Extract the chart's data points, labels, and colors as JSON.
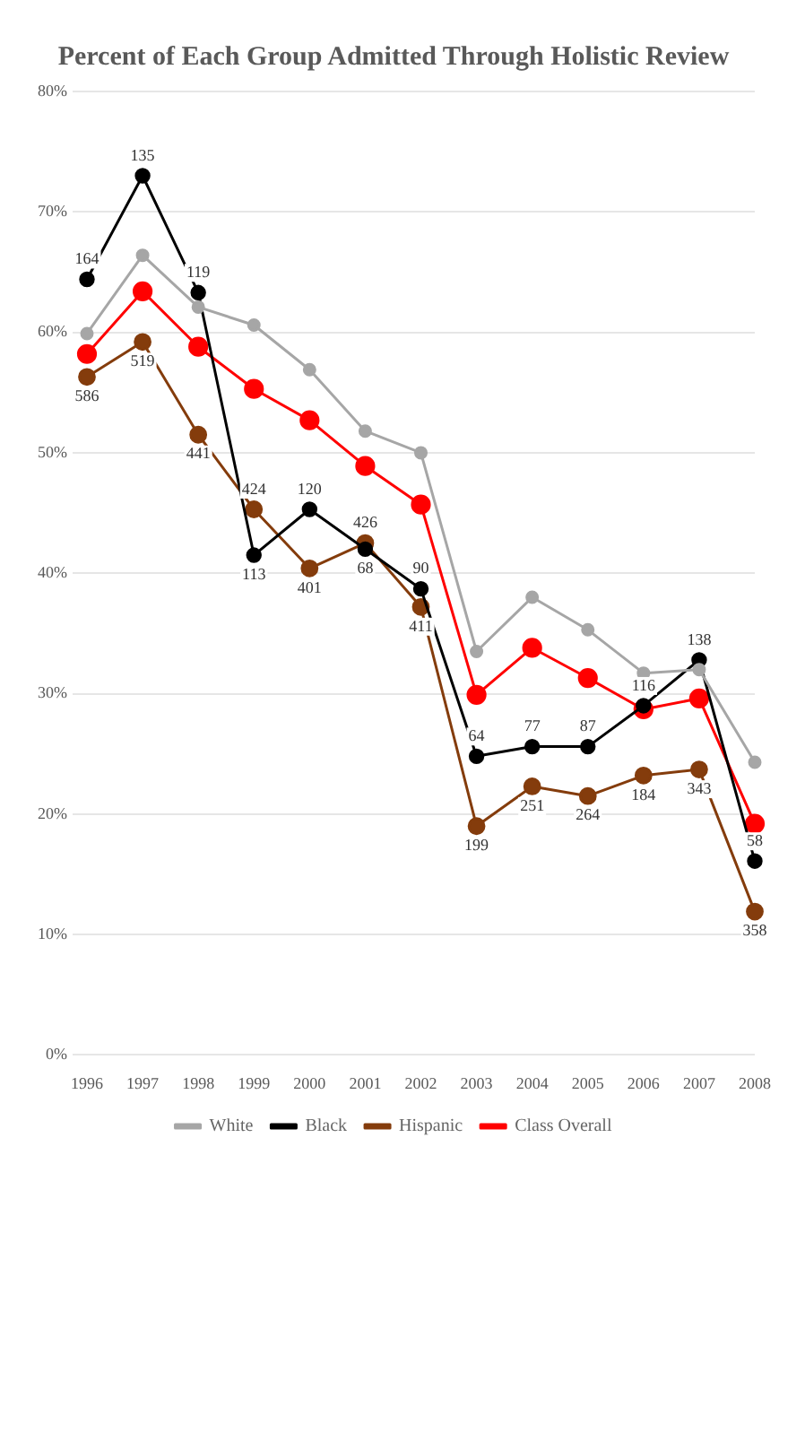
{
  "chart_data": {
    "type": "line",
    "title": "Percent of Each Group Admitted Through Holistic Review",
    "categories": [
      "1996",
      "1997",
      "1998",
      "1999",
      "2000",
      "2001",
      "2002",
      "2003",
      "2004",
      "2005",
      "2006",
      "2007",
      "2008"
    ],
    "series": [
      {
        "name": "White",
        "color": "#a6a6a6",
        "values": [
          59.9,
          66.4,
          62.1,
          60.6,
          56.9,
          51.8,
          50.0,
          33.5,
          38.0,
          35.3,
          31.7,
          32.0,
          24.3
        ]
      },
      {
        "name": "Black",
        "color": "#000000",
        "values": [
          64.4,
          73.0,
          63.3,
          41.5,
          45.3,
          42.0,
          38.7,
          24.8,
          25.6,
          25.6,
          29.0,
          32.8,
          16.1
        ]
      },
      {
        "name": "Hispanic",
        "color": "#843c0c",
        "values": [
          56.3,
          59.2,
          51.5,
          45.3,
          40.4,
          42.5,
          37.2,
          19.0,
          22.3,
          21.5,
          23.2,
          23.7,
          11.9
        ]
      },
      {
        "name": "Class Overall",
        "color": "#ff0000",
        "values": [
          58.2,
          63.4,
          58.8,
          55.3,
          52.7,
          48.9,
          45.7,
          29.9,
          33.8,
          31.3,
          28.7,
          29.6,
          19.2
        ]
      }
    ],
    "ylim": [
      0,
      80
    ],
    "yticks": [
      {
        "value": 0,
        "label": "0%"
      },
      {
        "value": 10,
        "label": "10%"
      },
      {
        "value": 20,
        "label": "20%"
      },
      {
        "value": 30,
        "label": "30%"
      },
      {
        "value": 40,
        "label": "40%"
      },
      {
        "value": 50,
        "label": "50%"
      },
      {
        "value": 60,
        "label": "60%"
      },
      {
        "value": 70,
        "label": "70%"
      },
      {
        "value": 80,
        "label": "80%"
      }
    ],
    "grid": "y",
    "legend": "bottom",
    "marker": "circle",
    "line_style": "solid",
    "annotations": [
      {
        "text": "164",
        "x": "1996",
        "y": 64.4
      },
      {
        "text": "135",
        "x": "1997",
        "y": 73.0
      },
      {
        "text": "119",
        "x": "1998",
        "y": 63.3
      },
      {
        "text": "113",
        "x": "1999",
        "y": 41.5
      },
      {
        "text": "120",
        "x": "2000",
        "y": 45.3
      },
      {
        "text": "68",
        "x": "2001",
        "y": 42.0
      },
      {
        "text": "90",
        "x": "2002",
        "y": 38.7
      },
      {
        "text": "64",
        "x": "2003",
        "y": 24.8
      },
      {
        "text": "77",
        "x": "2004",
        "y": 25.6
      },
      {
        "text": "87",
        "x": "2005",
        "y": 25.6
      },
      {
        "text": "116",
        "x": "2006",
        "y": 29.0
      },
      {
        "text": "138",
        "x": "2007",
        "y": 32.8
      },
      {
        "text": "58",
        "x": "2008",
        "y": 16.1
      },
      {
        "text": "586",
        "x": "1996",
        "y": 56.3
      },
      {
        "text": "519",
        "x": "1997",
        "y": 59.2
      },
      {
        "text": "441",
        "x": "1998",
        "y": 51.5
      },
      {
        "text": "424",
        "x": "1999",
        "y": 45.3
      },
      {
        "text": "401",
        "x": "2000",
        "y": 40.4
      },
      {
        "text": "426",
        "x": "2001",
        "y": 42.5
      },
      {
        "text": "411",
        "x": "2002",
        "y": 37.2
      },
      {
        "text": "199",
        "x": "2003",
        "y": 19.0
      },
      {
        "text": "251",
        "x": "2004",
        "y": 22.3
      },
      {
        "text": "264",
        "x": "2005",
        "y": 21.5
      },
      {
        "text": "184",
        "x": "2006",
        "y": 23.2
      },
      {
        "text": "343",
        "x": "2007",
        "y": 23.7
      },
      {
        "text": "358",
        "x": "2008",
        "y": 11.9
      }
    ]
  }
}
